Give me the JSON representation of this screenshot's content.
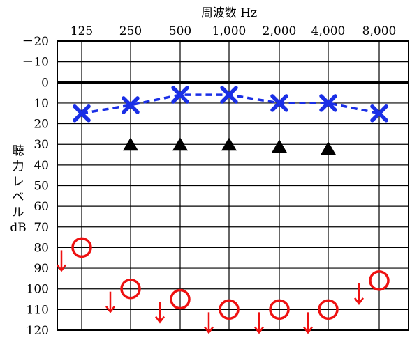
{
  "chart_data": {
    "type": "scatter",
    "title": "",
    "xlabel": "周波数 Hz",
    "ylabel": "聴力レベル dB",
    "categories": [
      "125",
      "250",
      "500",
      "1,000",
      "2,000",
      "4,000",
      "8,000"
    ],
    "y_tick_labels": [
      "－20",
      "－10",
      "0",
      "10",
      "20",
      "30",
      "40",
      "50",
      "60",
      "70",
      "80",
      "90",
      "100",
      "110",
      "120"
    ],
    "ylim": [
      -20,
      120
    ],
    "y_inverted": true,
    "grid": true,
    "legend": "none",
    "series": [
      {
        "marker": "x",
        "line": "dashed",
        "color": "#1a2fe6",
        "points": [
          {
            "x": "125",
            "y": 15
          },
          {
            "x": "250",
            "y": 11
          },
          {
            "x": "500",
            "y": 6
          },
          {
            "x": "1,000",
            "y": 6
          },
          {
            "x": "2,000",
            "y": 10
          },
          {
            "x": "4,000",
            "y": 10
          },
          {
            "x": "8,000",
            "y": 15
          }
        ]
      },
      {
        "marker": "triangle",
        "color": "#000000",
        "points": [
          {
            "x": "250",
            "y": 30
          },
          {
            "x": "500",
            "y": 30
          },
          {
            "x": "1,000",
            "y": 30
          },
          {
            "x": "2,000",
            "y": 31
          },
          {
            "x": "4,000",
            "y": 32
          }
        ]
      },
      {
        "marker": "circle-scale-out",
        "color": "#ee1111",
        "points": [
          {
            "x": "125",
            "y": 80
          },
          {
            "x": "250",
            "y": 100
          },
          {
            "x": "500",
            "y": 105
          },
          {
            "x": "1,000",
            "y": 110
          },
          {
            "x": "2,000",
            "y": 110
          },
          {
            "x": "4,000",
            "y": 110
          },
          {
            "x": "8,000",
            "y": 96
          }
        ]
      }
    ]
  }
}
